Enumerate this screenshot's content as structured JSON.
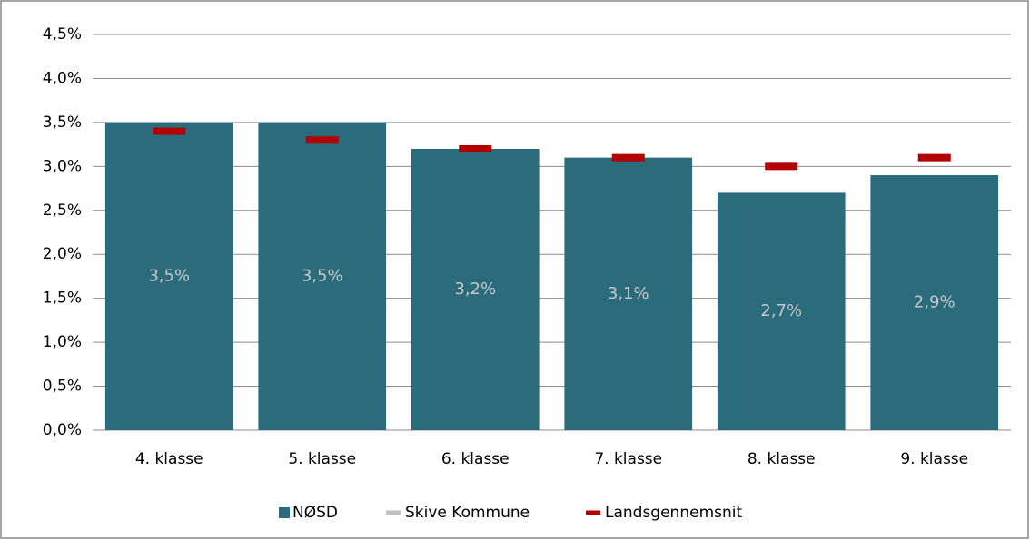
{
  "chart_data": {
    "type": "bar",
    "categories": [
      "4. klasse",
      "5. klasse",
      "6. klasse",
      "7. klasse",
      "8. klasse",
      "9. klasse"
    ],
    "series": [
      {
        "name": "NØSD",
        "color": "#2a6b7c",
        "mark": "bar",
        "values": [
          3.5,
          3.5,
          3.2,
          3.1,
          2.7,
          2.9
        ],
        "value_labels": [
          "3,5%",
          "3,5%",
          "3,2%",
          "3,1%",
          "2,7%",
          "2,9%"
        ]
      },
      {
        "name": "Skive Kommune",
        "color": "#c0c0c0",
        "mark": "dash",
        "values": [
          null,
          null,
          null,
          null,
          null,
          null
        ]
      },
      {
        "name": "Landsgennemsnit",
        "color": "#b30000",
        "mark": "dash",
        "values": [
          3.4,
          3.3,
          3.2,
          3.1,
          3.0,
          3.1
        ]
      }
    ],
    "ylim": [
      0,
      4.5
    ],
    "yticks": [
      {
        "value": 0,
        "label": "0,0%"
      },
      {
        "value": 0.5,
        "label": "0,5%"
      },
      {
        "value": 1,
        "label": "1,0%"
      },
      {
        "value": 1.5,
        "label": "1,5%"
      },
      {
        "value": 2,
        "label": "2,0%"
      },
      {
        "value": 2.5,
        "label": "2,5%"
      },
      {
        "value": 3,
        "label": "3,0%"
      },
      {
        "value": 3.5,
        "label": "3,5%"
      },
      {
        "value": 4,
        "label": "4,0%"
      },
      {
        "value": 4.5,
        "label": "4,5%"
      }
    ],
    "grid": true,
    "legend": "bottom"
  }
}
